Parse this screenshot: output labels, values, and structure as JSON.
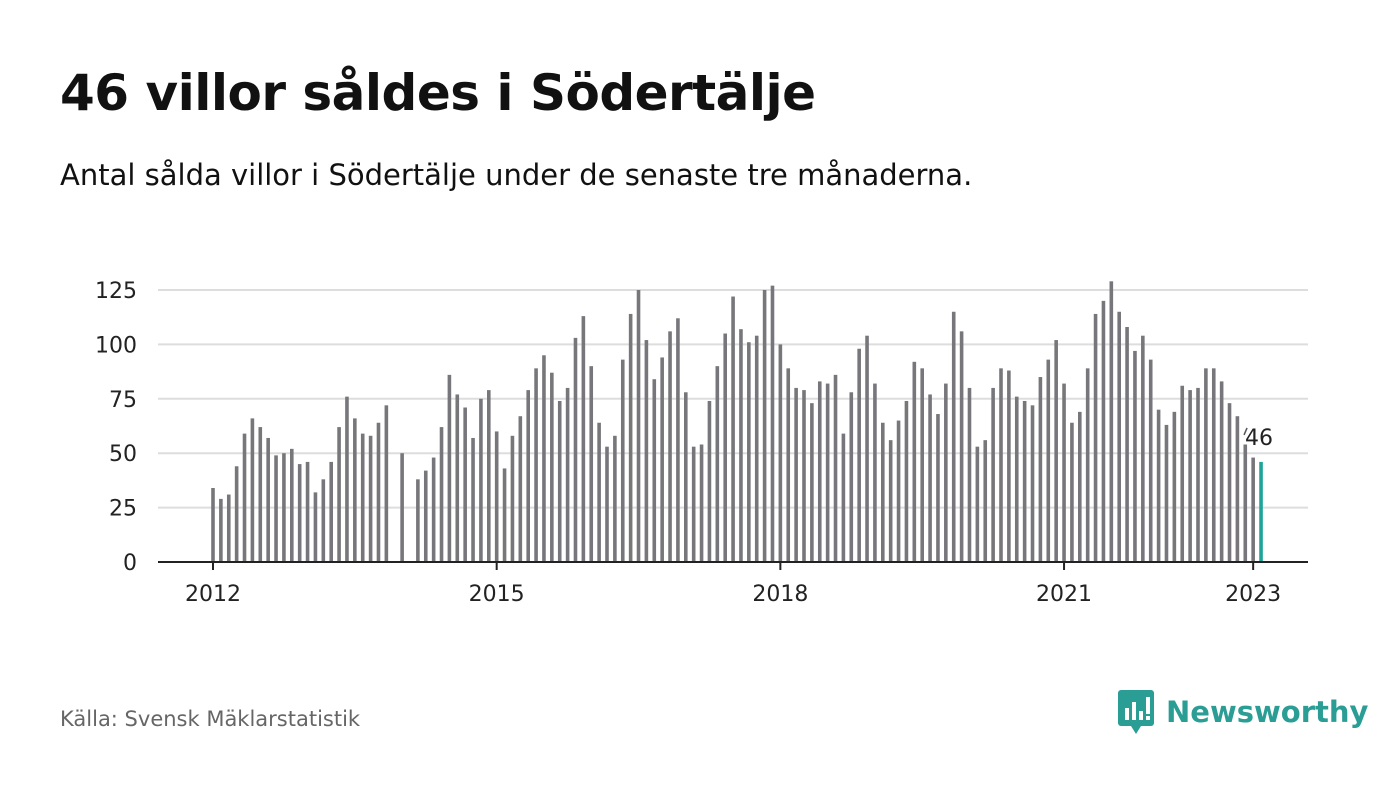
{
  "title": "46 villor såldes i Södertälje",
  "subtitle": "Antal sålda villor i Södertälje under de senaste tre månaderna.",
  "source": "Källa: Svensk Mäklarstatistik",
  "brand": {
    "name": "Newsworthy",
    "icon": "newsworthy-logo-icon",
    "color": "#2a9d95"
  },
  "colors": {
    "bar": "#77777b",
    "highlight": "#1fa39a",
    "grid": "#dddddd",
    "axis": "#222222"
  },
  "chart_data": {
    "type": "bar",
    "title": "46 villor såldes i Södertälje",
    "subtitle": "Antal sålda villor i Södertälje under de senaste tre månaderna.",
    "xlabel": "",
    "ylabel": "",
    "ylim": [
      0,
      125
    ],
    "yticks": [
      0,
      25,
      50,
      75,
      100,
      125
    ],
    "xticks": [
      "2012",
      "2015",
      "2018",
      "2021",
      "2023"
    ],
    "grid": true,
    "legend": "none",
    "highlight_label": "46",
    "series": [
      {
        "values": [
          34,
          29,
          31,
          44,
          59,
          66,
          62,
          57,
          49,
          50,
          52,
          45,
          46,
          32,
          38,
          46,
          62,
          76,
          66,
          59,
          58,
          64,
          72,
          null,
          50,
          null,
          38,
          42,
          48,
          62,
          86,
          77,
          71,
          57,
          75,
          79,
          60,
          43,
          58,
          67,
          79,
          89,
          95,
          87,
          74,
          80,
          103,
          113,
          90,
          64,
          53,
          58,
          93,
          114,
          125,
          102,
          84,
          94,
          106,
          112,
          78,
          53,
          54,
          74,
          90,
          105,
          122,
          107,
          101,
          104,
          125,
          127,
          100,
          89,
          80,
          79,
          73,
          83,
          82,
          86,
          59,
          78,
          98,
          104,
          82,
          64,
          56,
          65,
          74,
          92,
          89,
          77,
          68,
          82,
          115,
          106,
          80,
          53,
          56,
          80,
          89,
          88,
          76,
          74,
          72,
          85,
          93,
          102,
          82,
          64,
          69,
          89,
          114,
          120,
          129,
          115,
          108,
          97,
          104,
          93,
          70,
          63,
          69,
          81,
          79,
          80,
          89,
          89,
          83,
          73,
          67,
          54,
          48,
          46
        ]
      }
    ]
  }
}
